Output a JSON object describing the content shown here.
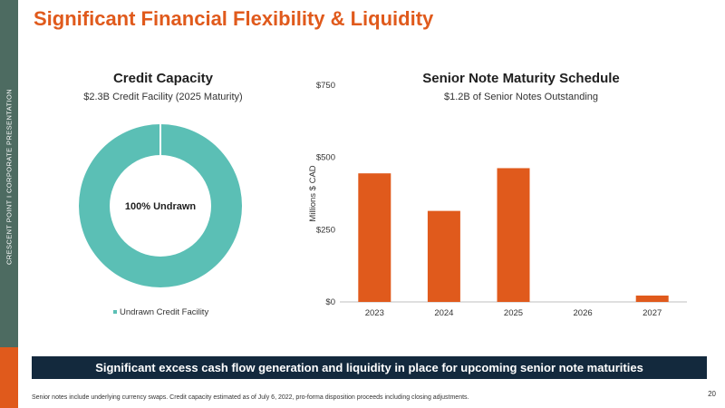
{
  "sidebar": {
    "text": "CRESCENT POINT   I   CORPORATE PRESENTATION"
  },
  "page": {
    "title": "Significant Financial Flexibility & Liquidity",
    "banner": "Significant excess cash flow generation and liquidity in place for upcoming senior note maturities",
    "footnote": "Senior notes include underlying currency swaps. Credit capacity estimated as of July 6, 2022, pro-forma disposition proceeds including closing adjustments.",
    "page_number": "20"
  },
  "colors": {
    "accent": "#e05a1c",
    "sidebar": "#4d6b61",
    "donut": "#5bbfb5",
    "banner": "#13293d"
  },
  "chart_data": [
    {
      "type": "pie",
      "title": "Credit Capacity",
      "subtitle": "$2.3B Credit Facility (2025 Maturity)",
      "center_label": "100% Undrawn",
      "slices": [
        {
          "label": "Undrawn Credit Facility",
          "value": 100
        }
      ],
      "legend": "bottom"
    },
    {
      "type": "bar",
      "title": "Senior Note Maturity Schedule",
      "subtitle": "$1.2B of Senior Notes Outstanding",
      "categories": [
        "2023",
        "2024",
        "2025",
        "2026",
        "2027"
      ],
      "values": [
        445,
        315,
        463,
        0,
        22
      ],
      "ylabel": "Millions $ CAD",
      "ylim": [
        0,
        750
      ],
      "yticks": [
        0,
        250,
        500,
        750
      ],
      "ytick_labels": [
        "$0",
        "$250",
        "$500",
        "$750"
      ],
      "grid": false
    }
  ]
}
